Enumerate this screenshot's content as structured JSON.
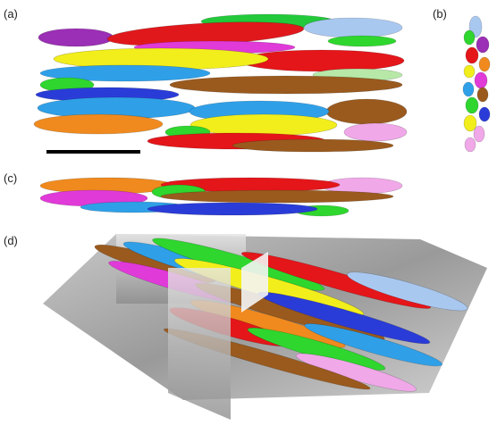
{
  "panels": {
    "a": "(a)",
    "b": "(b)",
    "c": "(c)",
    "d": "(d)"
  }
}
